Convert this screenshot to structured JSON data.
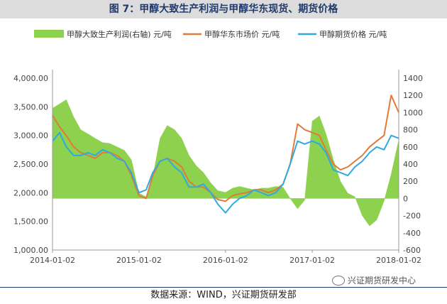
{
  "title": "图 7：甲醇大致生产利润与甲醇华东现货、期货价格",
  "source": "数据来源：WIND，兴证期货研发部",
  "watermark": "兴证期货研发中心",
  "colors": {
    "profit": "#8ed14f",
    "spot": "#e07b39",
    "futures": "#2eaae0"
  },
  "chart_data": {
    "type": "line",
    "legend_position": "top",
    "grid": false,
    "x_ticks": [
      "2014-01-02",
      "2015-01-02",
      "2016-01-02",
      "2017-01-02",
      "2018-01-02"
    ],
    "x_range": [
      "2014-01-02",
      "2018-01-02"
    ],
    "y_left": {
      "range": [
        1000,
        4000
      ],
      "ticks": [
        "1,000.00",
        "1,500.00",
        "2,000.00",
        "2,500.00",
        "3,000.00",
        "3,500.00",
        "4,000.00"
      ]
    },
    "y_right": {
      "range": [
        -600,
        1400
      ],
      "ticks": [
        "-600",
        "-400",
        "-200",
        "0",
        "200",
        "400",
        "600",
        "800",
        "1000",
        "1200",
        "1400"
      ]
    },
    "series": [
      {
        "name": "甲醇大致生产利润(右轴) 元/吨",
        "type": "area",
        "axis": "right",
        "x": [
          "2014-01-02",
          "2014-02-01",
          "2014-03-01",
          "2014-04-01",
          "2014-05-01",
          "2014-06-01",
          "2014-07-01",
          "2014-08-01",
          "2014-09-01",
          "2014-10-01",
          "2014-11-01",
          "2014-12-01",
          "2015-01-02",
          "2015-02-01",
          "2015-03-01",
          "2015-04-01",
          "2015-05-01",
          "2015-06-01",
          "2015-07-01",
          "2015-08-01",
          "2015-09-01",
          "2015-10-01",
          "2015-11-01",
          "2015-12-01",
          "2016-01-02",
          "2016-02-01",
          "2016-03-01",
          "2016-04-01",
          "2016-05-01",
          "2016-06-01",
          "2016-07-01",
          "2016-08-01",
          "2016-09-01",
          "2016-10-01",
          "2016-11-01",
          "2016-12-01",
          "2017-01-02",
          "2017-02-01",
          "2017-03-01",
          "2017-04-01",
          "2017-05-01",
          "2017-06-01",
          "2017-07-01",
          "2017-08-01",
          "2017-09-01",
          "2017-10-01",
          "2017-11-01",
          "2017-12-01",
          "2018-01-02"
        ],
        "values": [
          1050,
          1100,
          1150,
          950,
          800,
          750,
          700,
          650,
          640,
          600,
          560,
          450,
          60,
          20,
          250,
          700,
          850,
          800,
          700,
          500,
          380,
          300,
          180,
          90,
          70,
          120,
          140,
          120,
          100,
          120,
          120,
          140,
          130,
          0,
          -120,
          -20,
          900,
          960,
          750,
          450,
          200,
          60,
          20,
          -200,
          -320,
          -250,
          -30,
          280,
          680
        ]
      },
      {
        "name": "甲醇华东市场价 元/吨",
        "type": "line",
        "axis": "left",
        "x": [
          "2014-01-02",
          "2014-02-01",
          "2014-03-01",
          "2014-04-01",
          "2014-05-01",
          "2014-06-01",
          "2014-07-01",
          "2014-08-01",
          "2014-09-01",
          "2014-10-01",
          "2014-11-01",
          "2014-12-01",
          "2015-01-02",
          "2015-02-01",
          "2015-03-01",
          "2015-04-01",
          "2015-05-01",
          "2015-06-01",
          "2015-07-01",
          "2015-08-01",
          "2015-09-01",
          "2015-10-01",
          "2015-11-01",
          "2015-12-01",
          "2016-01-02",
          "2016-02-01",
          "2016-03-01",
          "2016-04-01",
          "2016-05-01",
          "2016-06-01",
          "2016-07-01",
          "2016-08-01",
          "2016-09-01",
          "2016-10-01",
          "2016-11-01",
          "2016-12-01",
          "2017-01-02",
          "2017-02-01",
          "2017-03-01",
          "2017-04-01",
          "2017-05-01",
          "2017-06-01",
          "2017-07-01",
          "2017-08-01",
          "2017-09-01",
          "2017-10-01",
          "2017-11-01",
          "2017-12-01",
          "2018-01-02"
        ],
        "values": [
          3350,
          3150,
          3000,
          2800,
          2700,
          2650,
          2600,
          2700,
          2700,
          2650,
          2550,
          2300,
          1950,
          1900,
          2300,
          2550,
          2600,
          2550,
          2450,
          2200,
          2100,
          2100,
          2000,
          1880,
          1850,
          1950,
          1980,
          2000,
          2050,
          2050,
          2000,
          2050,
          2150,
          2500,
          3200,
          3100,
          3050,
          3000,
          2750,
          2500,
          2400,
          2450,
          2550,
          2650,
          2800,
          2900,
          3000,
          3700,
          3400
        ]
      },
      {
        "name": "甲醇期货价格 元/吨",
        "type": "line",
        "axis": "left",
        "x": [
          "2014-01-02",
          "2014-02-01",
          "2014-03-01",
          "2014-04-01",
          "2014-05-01",
          "2014-06-01",
          "2014-07-01",
          "2014-08-01",
          "2014-09-01",
          "2014-10-01",
          "2014-11-01",
          "2014-12-01",
          "2015-01-02",
          "2015-02-01",
          "2015-03-01",
          "2015-04-01",
          "2015-05-01",
          "2015-06-01",
          "2015-07-01",
          "2015-08-01",
          "2015-09-01",
          "2015-10-01",
          "2015-11-01",
          "2015-12-01",
          "2016-01-02",
          "2016-02-01",
          "2016-03-01",
          "2016-04-01",
          "2016-05-01",
          "2016-06-01",
          "2016-07-01",
          "2016-08-01",
          "2016-09-01",
          "2016-10-01",
          "2016-11-01",
          "2016-12-01",
          "2017-01-02",
          "2017-02-01",
          "2017-03-01",
          "2017-04-01",
          "2017-05-01",
          "2017-06-01",
          "2017-07-01",
          "2017-08-01",
          "2017-09-01",
          "2017-10-01",
          "2017-11-01",
          "2017-12-01",
          "2018-01-02"
        ],
        "values": [
          2900,
          3050,
          2800,
          2650,
          2650,
          2700,
          2650,
          2750,
          2700,
          2600,
          2550,
          2350,
          2000,
          2050,
          2350,
          2550,
          2600,
          2450,
          2350,
          2100,
          2100,
          2150,
          2000,
          1800,
          1650,
          1800,
          1900,
          1950,
          2050,
          2000,
          1950,
          2000,
          2150,
          2500,
          2900,
          2850,
          2900,
          2850,
          2700,
          2400,
          2350,
          2300,
          2450,
          2550,
          2700,
          2800,
          2750,
          3000,
          2950
        ]
      }
    ]
  }
}
